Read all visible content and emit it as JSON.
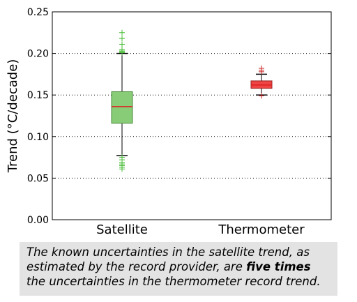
{
  "chart_data": {
    "type": "box",
    "title": "",
    "xlabel": "",
    "ylabel": "Trend (°C/decade)",
    "ylim": [
      0.0,
      0.25
    ],
    "yticks": [
      "0.00",
      "0.05",
      "0.10",
      "0.15",
      "0.20",
      "0.25"
    ],
    "ytick_values": [
      0.0,
      0.05,
      0.1,
      0.15,
      0.2,
      0.25
    ],
    "grid": "horizontal-dotted",
    "categories": [
      "Satellite",
      "Thermometer"
    ],
    "boxes": [
      {
        "name": "Satellite",
        "color": "#88cc77",
        "edge_color": "#4a8a3c",
        "flier_color": "#44bb33",
        "whisker_low": 0.077,
        "q1": 0.116,
        "median": 0.136,
        "q3": 0.154,
        "whisker_high": 0.2,
        "fliers": [
          0.061,
          0.063,
          0.065,
          0.067,
          0.069,
          0.072,
          0.075,
          0.201,
          0.202,
          0.203,
          0.205,
          0.211,
          0.218,
          0.225
        ]
      },
      {
        "name": "Thermometer",
        "color": "#ee4444",
        "edge_color": "#992222",
        "flier_color": "#cc2222",
        "whisker_low": 0.15,
        "q1": 0.158,
        "median": 0.162,
        "q3": 0.167,
        "whisker_high": 0.175,
        "fliers": [
          0.149,
          0.178,
          0.18,
          0.182
        ]
      }
    ]
  },
  "caption": {
    "text_before": "The known uncertainties in the satellite trend, as estimated by the record provider, are ",
    "text_bold": "five times",
    "text_after": " the uncertainties in the thermometer record trend."
  }
}
